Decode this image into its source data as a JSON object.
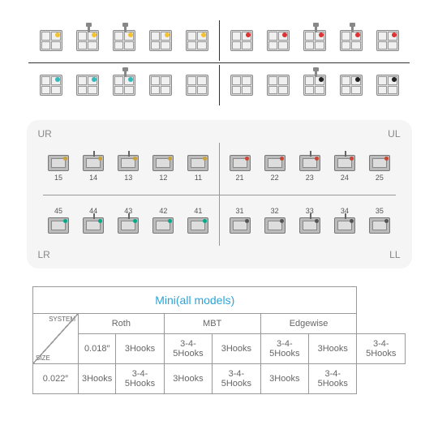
{
  "top_diagram": {
    "row1": {
      "left": [
        {
          "dot": "#f2c233"
        },
        {
          "dot": "#f2c233",
          "hook": true
        },
        {
          "dot": "#f2c233",
          "hook": true
        },
        {
          "dot": "#f2c233"
        },
        {
          "dot": "#f2c233"
        }
      ],
      "right": [
        {
          "dot": "#d33"
        },
        {
          "dot": "#d33"
        },
        {
          "dot": "#d33",
          "hook": true
        },
        {
          "dot": "#d33",
          "hook": true
        },
        {
          "dot": "#d33"
        }
      ]
    },
    "row2": {
      "left": [
        {
          "dot": "#3bb"
        },
        {
          "dot": "#3bb"
        },
        {
          "dot": "#3bb",
          "hook": true
        },
        {
          "dot": null
        },
        {
          "dot": null
        }
      ],
      "right": [
        {
          "dot": null
        },
        {
          "dot": null
        },
        {
          "dot": "#222",
          "hook": true
        },
        {
          "dot": "#222"
        },
        {
          "dot": "#222"
        }
      ]
    }
  },
  "card": {
    "corners": {
      "ur": "UR",
      "ul": "UL",
      "lr": "LR",
      "ll": "LL"
    },
    "rows": [
      {
        "left": [
          {
            "n": "15",
            "c": "#c9a23a"
          },
          {
            "n": "14",
            "c": "#c9a23a",
            "h": true
          },
          {
            "n": "13",
            "c": "#c9a23a",
            "h": true
          },
          {
            "n": "12",
            "c": "#c9a23a"
          },
          {
            "n": "11",
            "c": "#c9a23a"
          }
        ],
        "right": [
          {
            "n": "21",
            "c": "#c43"
          },
          {
            "n": "22",
            "c": "#c43"
          },
          {
            "n": "23",
            "c": "#c43",
            "h": true
          },
          {
            "n": "24",
            "c": "#c43",
            "h": true
          },
          {
            "n": "25",
            "c": "#c43"
          }
        ]
      },
      {
        "left": [
          {
            "n": "45",
            "c": "#0a8"
          },
          {
            "n": "44",
            "c": "#0a8",
            "h": true
          },
          {
            "n": "43",
            "c": "#0a8",
            "h": true
          },
          {
            "n": "42",
            "c": "#0a8"
          },
          {
            "n": "41",
            "c": "#0a8"
          }
        ],
        "right": [
          {
            "n": "31",
            "c": "#555"
          },
          {
            "n": "32",
            "c": "#555"
          },
          {
            "n": "33",
            "c": "#555",
            "h": true
          },
          {
            "n": "34",
            "c": "#555",
            "h": true
          },
          {
            "n": "35",
            "c": "#555"
          }
        ]
      }
    ]
  },
  "table": {
    "title": "Mini(all models)",
    "diag": {
      "system": "SYSTEM",
      "size": "SIZE"
    },
    "systems": [
      "Roth",
      "MBT",
      "Edgewise"
    ],
    "sizes": [
      "0.018″",
      "0.022″"
    ],
    "cells": {
      "a": "3Hooks",
      "b": "3-4-5Hooks"
    }
  }
}
